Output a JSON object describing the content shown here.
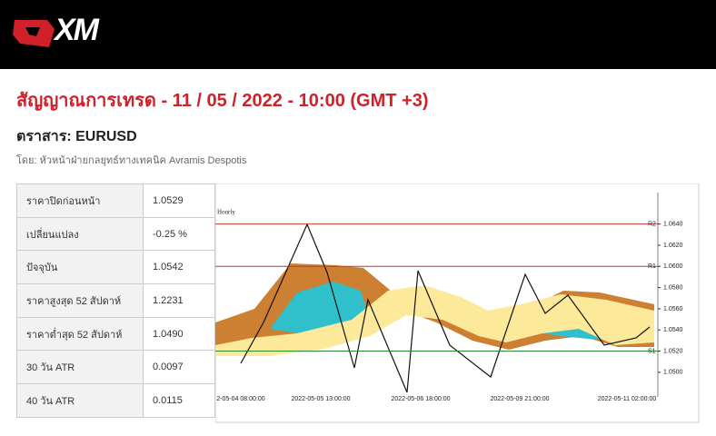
{
  "header": {
    "logo": "XM"
  },
  "title": "สัญญาณการเทรด - 11 / 05 / 2022 - 10:00 (GMT +3)",
  "instrument": "ตราสาร: EURUSD",
  "byline": "โดย: หัวหน้าฝ่ายกลยุทธ์ทางเทคนิค Avramis Despotis",
  "table": {
    "rows": [
      [
        "ราคาปิดก่อนหน้า",
        "1.0529"
      ],
      [
        "เปลี่ยนแปลง",
        "-0.25 %"
      ],
      [
        "ปัจจุบัน",
        "1.0542"
      ],
      [
        "ราคาสูงสุด 52 สัปดาห์",
        "1.2231"
      ],
      [
        "ราคาต่ำสุด 52 สัปดาห์",
        "1.0490"
      ],
      [
        "30 วัน ATR",
        "0.0097"
      ],
      [
        "40 วัน ATR",
        "0.0115"
      ]
    ]
  },
  "chart_data": {
    "type": "candlestick",
    "title": "Hourly",
    "categories": [
      "2-05-04 08:00:00",
      "2022-05-05 13:00:00",
      "2022-05-06 18:00:00",
      "2022-05-09 21:00:00",
      "2022-05-11 02:00:00"
    ],
    "ylim": [
      1.0481,
      1.0656
    ],
    "yticks": [
      {
        "value": 1.05,
        "label": "1.0500"
      },
      {
        "value": 1.052,
        "label": "1.0520"
      },
      {
        "value": 1.054,
        "label": "1.0540"
      },
      {
        "value": 1.056,
        "label": "1.0560"
      },
      {
        "value": 1.058,
        "label": "1.0580"
      },
      {
        "value": 1.06,
        "label": "1.0600"
      },
      {
        "value": 1.062,
        "label": "1.0620"
      },
      {
        "value": 1.064,
        "label": "1.0640"
      }
    ],
    "levels": [
      {
        "name": "R2",
        "value": 1.064,
        "color": "#c0392b"
      },
      {
        "name": "R1",
        "value": 1.06,
        "color": "#c0392b"
      },
      {
        "name": "S1",
        "value": 1.052,
        "color": "#2e8b2e"
      }
    ]
  }
}
